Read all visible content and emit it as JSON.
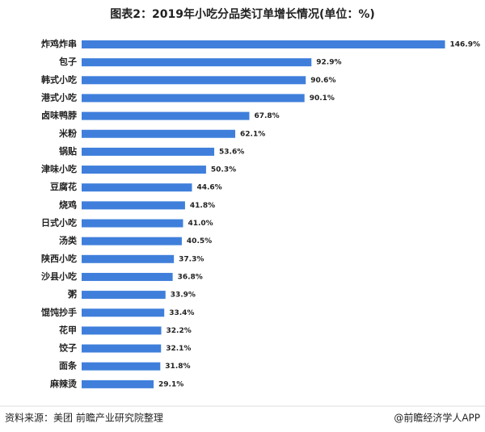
{
  "chart_data": {
    "type": "bar",
    "orientation": "horizontal",
    "title": "图表2：2019年小吃分品类订单增长情况(单位：%)",
    "categories": [
      "炸鸡炸串",
      "包子",
      "韩式小吃",
      "港式小吃",
      "卤味鸭脖",
      "米粉",
      "锅贴",
      "津味小吃",
      "豆腐花",
      "烧鸡",
      "日式小吃",
      "汤类",
      "陕西小吃",
      "沙县小吃",
      "粥",
      "馄饨抄手",
      "花甲",
      "饺子",
      "面条",
      "麻辣烫"
    ],
    "values": [
      146.9,
      92.9,
      90.6,
      90.1,
      67.8,
      62.1,
      53.6,
      50.3,
      44.6,
      41.8,
      41.0,
      40.5,
      37.3,
      36.8,
      33.9,
      33.4,
      32.2,
      32.1,
      31.8,
      29.1
    ],
    "value_labels": [
      "146.9%",
      "92.9%",
      "90.6%",
      "90.1%",
      "67.8%",
      "62.1%",
      "53.6%",
      "50.3%",
      "44.6%",
      "41.8%",
      "41.0%",
      "40.5%",
      "37.3%",
      "36.8%",
      "33.9%",
      "33.4%",
      "32.2%",
      "32.1%",
      "31.8%",
      "29.1%"
    ],
    "color": "#3f7fdb",
    "xlim": [
      0,
      150
    ],
    "source": "资料来源：美团 前瞻产业研究院整理",
    "credit": "@前瞻经济学人APP"
  }
}
